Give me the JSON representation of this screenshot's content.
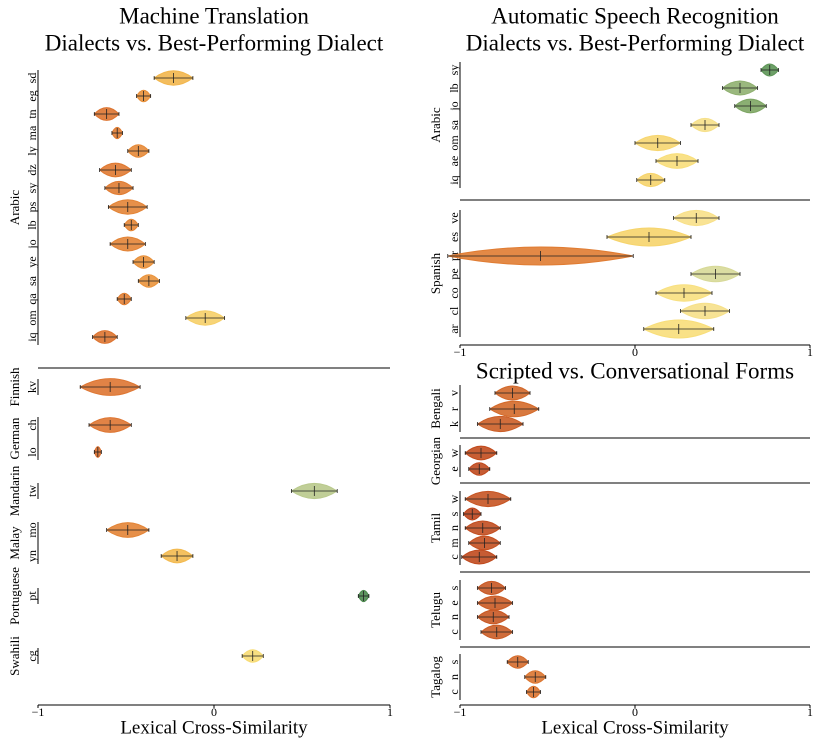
{
  "chart_data": [
    {
      "type": "violin",
      "title": "Machine Translation",
      "subtitle": "Dialects vs. Best-Performing Dialect",
      "xlabel": "Lexical Cross-Similarity",
      "xlim": [
        -1,
        1
      ],
      "xticks": [
        {
          "value": -1,
          "label": "−1"
        },
        0,
        1
      ],
      "groups": [
        {
          "name": "Arabic",
          "items": [
            {
              "label": "sd",
              "value": -0.23,
              "error": 0.11,
              "color": "#f2b64c"
            },
            {
              "label": "eg",
              "value": -0.4,
              "error": 0.04,
              "color": "#e8903a"
            },
            {
              "label": "tn",
              "value": -0.61,
              "error": 0.07,
              "color": "#dd7430"
            },
            {
              "label": "ma",
              "value": -0.55,
              "error": 0.03,
              "color": "#e07c32"
            },
            {
              "label": "ly",
              "value": -0.43,
              "error": 0.06,
              "color": "#e68a38"
            },
            {
              "label": "dz",
              "value": -0.56,
              "error": 0.09,
              "color": "#e07a32"
            },
            {
              "label": "sy",
              "value": -0.54,
              "error": 0.08,
              "color": "#e07c32"
            },
            {
              "label": "ps",
              "value": -0.49,
              "error": 0.11,
              "color": "#e38436"
            },
            {
              "label": "lb",
              "value": -0.47,
              "error": 0.04,
              "color": "#e48636"
            },
            {
              "label": "jo",
              "value": -0.49,
              "error": 0.1,
              "color": "#e38436"
            },
            {
              "label": "ye",
              "value": -0.4,
              "error": 0.06,
              "color": "#e8903a"
            },
            {
              "label": "sa",
              "value": -0.37,
              "error": 0.06,
              "color": "#ea943c"
            },
            {
              "label": "qa",
              "value": -0.51,
              "error": 0.04,
              "color": "#e28034"
            },
            {
              "label": "om",
              "value": -0.05,
              "error": 0.11,
              "color": "#f6cf68"
            },
            {
              "label": "iq",
              "value": -0.62,
              "error": 0.07,
              "color": "#dd7430"
            }
          ]
        },
        {
          "name": "Finnish",
          "items": [
            {
              "label": "kv",
              "value": -0.59,
              "error": 0.17,
              "color": "#de7632"
            }
          ]
        },
        {
          "name": "German",
          "items": [
            {
              "label": "ch",
              "value": -0.59,
              "error": 0.12,
              "color": "#de7632"
            },
            {
              "label": "lo",
              "value": -0.66,
              "error": 0.02,
              "color": "#da6e2e"
            }
          ]
        },
        {
          "name": "Mandarin",
          "items": [
            {
              "label": "tw",
              "value": 0.57,
              "error": 0.13,
              "color": "#b9c98c"
            }
          ]
        },
        {
          "name": "Malay",
          "items": [
            {
              "label": "mo",
              "value": -0.49,
              "error": 0.12,
              "color": "#e38436"
            },
            {
              "label": "yn",
              "value": -0.21,
              "error": 0.09,
              "color": "#f3ba50"
            }
          ]
        },
        {
          "name": "Portuguese",
          "items": [
            {
              "label": "pt",
              "value": 0.85,
              "error": 0.03,
              "color": "#4e8a50"
            }
          ]
        },
        {
          "name": "Swahili",
          "items": [
            {
              "label": "cg",
              "value": 0.22,
              "error": 0.06,
              "color": "#f7dc74"
            }
          ]
        }
      ]
    },
    {
      "type": "violin",
      "title": "Automatic Speech Recognition",
      "subtitle": "Dialects vs. Best-Performing Dialect",
      "xlim": [
        -1,
        1
      ],
      "xticks": [
        {
          "value": -1,
          "label": "−1"
        },
        0,
        1
      ],
      "groups": [
        {
          "name": "Arabic",
          "items": [
            {
              "label": "sy",
              "value": 0.77,
              "error": 0.05,
              "color": "#5e9658"
            },
            {
              "label": "lb",
              "value": 0.6,
              "error": 0.1,
              "color": "#8fb070"
            },
            {
              "label": "jo",
              "value": 0.66,
              "error": 0.09,
              "color": "#7ea664"
            },
            {
              "label": "sa",
              "value": 0.4,
              "error": 0.08,
              "color": "#f6e08a"
            },
            {
              "label": "om",
              "value": 0.13,
              "error": 0.13,
              "color": "#f7d670"
            },
            {
              "label": "ae",
              "value": 0.24,
              "error": 0.12,
              "color": "#f8de7a"
            },
            {
              "label": "iq",
              "value": 0.09,
              "error": 0.08,
              "color": "#f6d46c"
            }
          ]
        },
        {
          "name": "Spanish",
          "items": [
            {
              "label": "ve",
              "value": 0.35,
              "error": 0.13,
              "color": "#f8e088"
            },
            {
              "label": "es",
              "value": 0.08,
              "error": 0.24,
              "color": "#f6d46c"
            },
            {
              "label": "pr",
              "value": -0.54,
              "error": 0.53,
              "color": "#e07c32"
            },
            {
              "label": "pe",
              "value": 0.46,
              "error": 0.14,
              "color": "#d7d998"
            },
            {
              "label": "co",
              "value": 0.28,
              "error": 0.16,
              "color": "#f8e080"
            },
            {
              "label": "cl",
              "value": 0.4,
              "error": 0.14,
              "color": "#f6e08a"
            },
            {
              "label": "ar",
              "value": 0.25,
              "error": 0.2,
              "color": "#f8de7a"
            }
          ]
        }
      ]
    },
    {
      "type": "violin",
      "title": "Scripted vs. Conversational Forms",
      "xlabel": "Lexical Cross-Similarity",
      "xlim": [
        -1,
        1
      ],
      "xticks": [
        {
          "value": -1,
          "label": "−1"
        },
        0,
        1
      ],
      "groups": [
        {
          "name": "Bengali",
          "items": [
            {
              "label": "v",
              "value": -0.7,
              "error": 0.1,
              "color": "#d2682a"
            },
            {
              "label": "r",
              "value": -0.69,
              "error": 0.14,
              "color": "#d46a2a"
            },
            {
              "label": "k",
              "value": -0.77,
              "error": 0.13,
              "color": "#cc5e26"
            }
          ]
        },
        {
          "name": "Georgian",
          "items": [
            {
              "label": "w",
              "value": -0.88,
              "error": 0.09,
              "color": "#c24c1e"
            },
            {
              "label": "e",
              "value": -0.89,
              "error": 0.06,
              "color": "#c04a1e"
            }
          ]
        },
        {
          "name": "Tamil",
          "items": [
            {
              "label": "w",
              "value": -0.84,
              "error": 0.13,
              "color": "#c65422"
            },
            {
              "label": "s",
              "value": -0.93,
              "error": 0.05,
              "color": "#bc441c"
            },
            {
              "label": "n",
              "value": -0.87,
              "error": 0.1,
              "color": "#c24e20"
            },
            {
              "label": "m",
              "value": -0.86,
              "error": 0.09,
              "color": "#c45020"
            },
            {
              "label": "c",
              "value": -0.89,
              "error": 0.1,
              "color": "#c04a1e"
            }
          ]
        },
        {
          "name": "Telugu",
          "items": [
            {
              "label": "s",
              "value": -0.82,
              "error": 0.08,
              "color": "#c85824"
            },
            {
              "label": "e",
              "value": -0.8,
              "error": 0.1,
              "color": "#ca5a24"
            },
            {
              "label": "n",
              "value": -0.81,
              "error": 0.09,
              "color": "#c85824"
            },
            {
              "label": "c",
              "value": -0.79,
              "error": 0.09,
              "color": "#ca5c26"
            }
          ]
        },
        {
          "name": "Tagalog",
          "items": [
            {
              "label": "s",
              "value": -0.67,
              "error": 0.06,
              "color": "#d56c2c"
            },
            {
              "label": "n",
              "value": -0.57,
              "error": 0.06,
              "color": "#dc7630"
            },
            {
              "label": "c",
              "value": -0.58,
              "error": 0.04,
              "color": "#dc7430"
            }
          ]
        }
      ]
    }
  ]
}
